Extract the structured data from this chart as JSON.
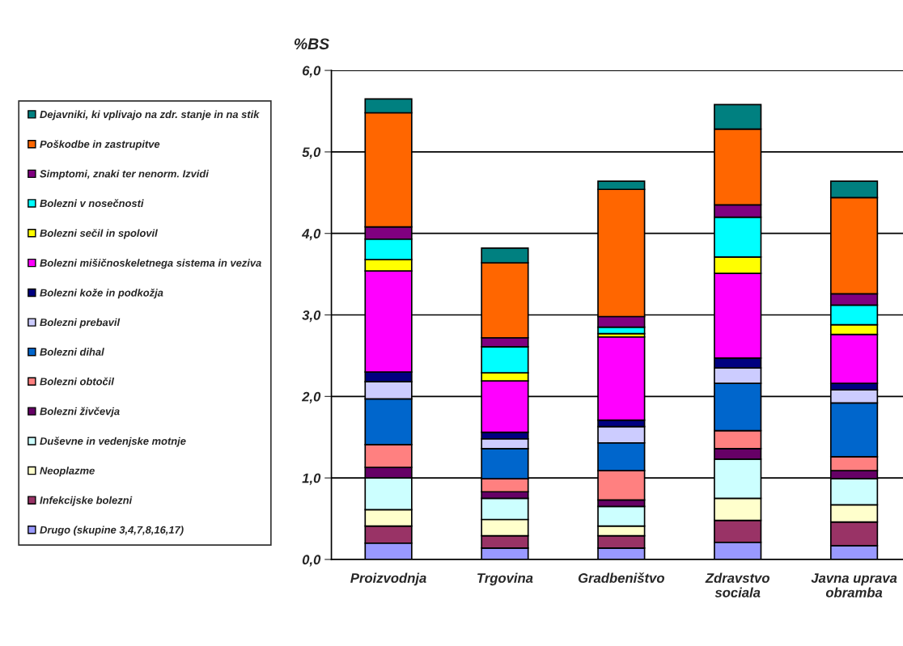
{
  "chart_data": {
    "type": "bar",
    "stacked": true,
    "ylabel": "%BS",
    "categories": [
      "Proizvodnja",
      "Trgovina",
      "Gradbeništvo",
      "Zdravstvo\nsociala",
      "Javna uprava\nobramba"
    ],
    "ylim": [
      0,
      6
    ],
    "yticks": [
      {
        "value": 0,
        "label": "0,0"
      },
      {
        "value": 1,
        "label": "1,0"
      },
      {
        "value": 2,
        "label": "2,0"
      },
      {
        "value": 3,
        "label": "3,0"
      },
      {
        "value": 4,
        "label": "4,0"
      },
      {
        "value": 5,
        "label": "5,0"
      },
      {
        "value": 6,
        "label": "6,0"
      }
    ],
    "grid": "y",
    "legend": "left",
    "series": [
      {
        "name": "Drugo (skupine 3,4,7,8,16,17)",
        "color": "#9999ff",
        "values": [
          0.2,
          0.14,
          0.14,
          0.21,
          0.17
        ]
      },
      {
        "name": "Infekcijske bolezni",
        "color": "#993366",
        "values": [
          0.21,
          0.15,
          0.15,
          0.27,
          0.29
        ]
      },
      {
        "name": "Neoplazme",
        "color": "#ffffcc",
        "values": [
          0.2,
          0.2,
          0.12,
          0.27,
          0.21
        ]
      },
      {
        "name": "Duševne in vedenjske motnje",
        "color": "#ccffff",
        "values": [
          0.39,
          0.26,
          0.24,
          0.48,
          0.32
        ]
      },
      {
        "name": "Bolezni živčevja",
        "color": "#660066",
        "values": [
          0.13,
          0.08,
          0.08,
          0.13,
          0.1
        ]
      },
      {
        "name": "Bolezni obtočil",
        "color": "#ff8080",
        "values": [
          0.28,
          0.16,
          0.36,
          0.22,
          0.17
        ]
      },
      {
        "name": "Bolezni dihal",
        "color": "#0066cc",
        "values": [
          0.56,
          0.37,
          0.34,
          0.58,
          0.66
        ]
      },
      {
        "name": "Bolezni prebavil",
        "color": "#ccccff",
        "values": [
          0.21,
          0.12,
          0.2,
          0.19,
          0.16
        ]
      },
      {
        "name": "Bolezni kože in podkožja",
        "color": "#000080",
        "values": [
          0.12,
          0.08,
          0.08,
          0.12,
          0.08
        ]
      },
      {
        "name": "Bolezni mišičnoskeletnega sistema in veziva",
        "color": "#ff00ff",
        "values": [
          1.24,
          0.63,
          1.02,
          1.04,
          0.6
        ]
      },
      {
        "name": "Bolezni sečil in spolovil",
        "color": "#ffff00",
        "values": [
          0.14,
          0.1,
          0.04,
          0.2,
          0.12
        ]
      },
      {
        "name": "Bolezni v nosečnosti",
        "color": "#00ffff",
        "values": [
          0.25,
          0.32,
          0.08,
          0.49,
          0.24
        ]
      },
      {
        "name": "Simptomi, znaki ter nenorm. Izvidi",
        "color": "#800080",
        "values": [
          0.15,
          0.11,
          0.13,
          0.15,
          0.14
        ]
      },
      {
        "name": "Poškodbe in zastrupitve",
        "color": "#ff6600",
        "values": [
          1.4,
          0.92,
          1.56,
          0.93,
          1.18
        ]
      },
      {
        "name": "Dejavniki, ki vplivajo na zdr. stanje in na stik",
        "color": "#008080",
        "values": [
          0.17,
          0.18,
          0.1,
          0.3,
          0.2
        ]
      }
    ]
  }
}
